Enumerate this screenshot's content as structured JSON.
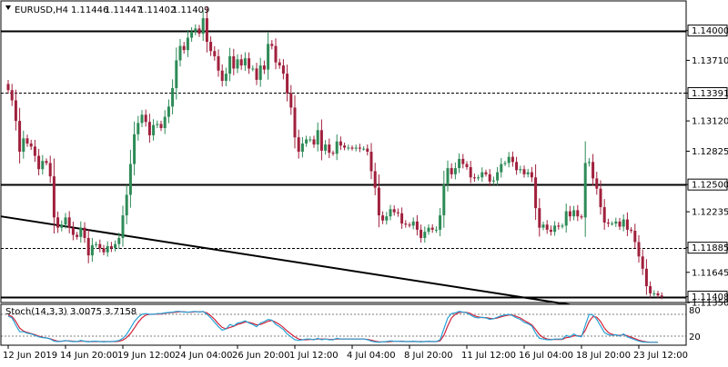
{
  "header": {
    "symbol": "EURUSD,H4",
    "open": "1.11446",
    "high": "1.11447",
    "low": "1.11402",
    "close": "1.11409"
  },
  "indicator": {
    "label": "Stoch(14,3,3) 3.0075 3.7158",
    "levels": [
      "80",
      "20"
    ]
  },
  "colors": {
    "bull": "#2e8b57",
    "bear": "#a0203c",
    "stoch_main": "#29a3d6",
    "stoch_signal": "#d1233a",
    "level_line": "#000000"
  },
  "chart_data": [
    {
      "type": "candlestick",
      "title": "EURUSD,H4",
      "ylim": [
        1.1136,
        1.1428
      ],
      "x_tick_labels": [
        "12 Jun 2019",
        "14 Jun 20:00",
        "19 Jun 12:00",
        "24 Jun 04:00",
        "26 Jun 20:00",
        "1 Jul 12:00",
        "4 Jul 04:00",
        "8 Jul 20:00",
        "11 Jul 12:00",
        "16 Jul 04:00",
        "18 Jul 20:00",
        "23 Jul 12:00"
      ],
      "y_tick_labels": [
        "1.14000",
        "1.13710",
        "1.13391",
        "1.13120",
        "1.12825",
        "1.12500",
        "1.12235",
        "1.11885",
        "1.11645",
        "1.11408",
        "1.11350"
      ],
      "horizontal_levels": [
        {
          "value": 1.14,
          "style": "solid"
        },
        {
          "value": 1.13391,
          "style": "dashed"
        },
        {
          "value": 1.125,
          "style": "solid"
        },
        {
          "value": 1.11885,
          "style": "dashed"
        },
        {
          "value": 1.11408,
          "style": "solid"
        }
      ],
      "trendline": {
        "start": [
          0,
          1.1219
        ],
        "end": [
          147,
          1.1133
        ]
      },
      "grid": false,
      "close": [
        1.1342,
        1.1332,
        1.1312,
        1.1282,
        1.1295,
        1.129,
        1.1287,
        1.1278,
        1.1265,
        1.1273,
        1.1271,
        1.1258,
        1.1218,
        1.1208,
        1.1211,
        1.1218,
        1.1208,
        1.1201,
        1.1199,
        1.1208,
        1.1198,
        1.1181,
        1.1191,
        1.1192,
        1.1188,
        1.1184,
        1.119,
        1.1188,
        1.1192,
        1.1198,
        1.122,
        1.124,
        1.127,
        1.1299,
        1.131,
        1.1318,
        1.1311,
        1.1298,
        1.1308,
        1.1309,
        1.1305,
        1.1316,
        1.1326,
        1.1344,
        1.1371,
        1.1385,
        1.1381,
        1.1393,
        1.1399,
        1.1402,
        1.1397,
        1.1412,
        1.1389,
        1.138,
        1.1375,
        1.1361,
        1.1351,
        1.1358,
        1.1375,
        1.1363,
        1.1372,
        1.1366,
        1.1373,
        1.1363,
        1.1363,
        1.1352,
        1.1366,
        1.1362,
        1.1387,
        1.1385,
        1.1369,
        1.1366,
        1.1358,
        1.1339,
        1.1325,
        1.1296,
        1.1282,
        1.129,
        1.1294,
        1.1294,
        1.1289,
        1.1303,
        1.1283,
        1.1289,
        1.1281,
        1.128,
        1.1292,
        1.1288,
        1.1286,
        1.1286,
        1.1285,
        1.1286,
        1.1285,
        1.1285,
        1.1282,
        1.1263,
        1.1247,
        1.122,
        1.1215,
        1.1219,
        1.1226,
        1.1223,
        1.1222,
        1.1212,
        1.1211,
        1.121,
        1.1214,
        1.1206,
        1.1198,
        1.1204,
        1.1208,
        1.1206,
        1.1206,
        1.122,
        1.125,
        1.1266,
        1.126,
        1.1266,
        1.1275,
        1.127,
        1.1267,
        1.1257,
        1.1256,
        1.1257,
        1.1262,
        1.126,
        1.1253,
        1.1254,
        1.1262,
        1.127,
        1.1271,
        1.1277,
        1.1272,
        1.1264,
        1.1265,
        1.126,
        1.1262,
        1.1257,
        1.1227,
        1.1208,
        1.1211,
        1.1206,
        1.1204,
        1.121,
        1.1209,
        1.121,
        1.1224,
        1.1219,
        1.1225,
        1.1219,
        1.1218,
        1.1271,
        1.1272,
        1.1256,
        1.1246,
        1.1228,
        1.1213,
        1.1212,
        1.1212,
        1.1214,
        1.1209,
        1.1216,
        1.1206,
        1.1205,
        1.1194,
        1.118,
        1.1168,
        1.1151,
        1.1144,
        1.1144,
        1.1142,
        1.1141
      ],
      "stochastic": {
        "main": [
          75,
          70,
          50,
          32,
          32,
          28,
          26,
          22,
          18,
          16,
          15,
          12,
          6,
          5,
          6,
          8,
          6,
          5,
          5,
          8,
          6,
          4,
          6,
          6,
          5,
          4,
          5,
          5,
          6,
          8,
          14,
          25,
          42,
          60,
          72,
          80,
          82,
          80,
          80,
          82,
          82,
          84,
          85,
          86,
          88,
          88,
          86,
          86,
          87,
          88,
          86,
          88,
          80,
          70,
          58,
          46,
          36,
          40,
          52,
          48,
          56,
          58,
          62,
          56,
          52,
          46,
          56,
          60,
          66,
          64,
          52,
          46,
          38,
          26,
          18,
          10,
          8,
          10,
          12,
          12,
          10,
          14,
          10,
          12,
          10,
          10,
          14,
          12,
          12,
          12,
          12,
          12,
          12,
          12,
          10,
          6,
          4,
          3,
          4,
          5,
          7,
          6,
          6,
          5,
          5,
          5,
          6,
          5,
          4,
          5,
          6,
          5,
          5,
          10,
          40,
          70,
          82,
          84,
          88,
          86,
          84,
          78,
          72,
          70,
          72,
          70,
          66,
          68,
          72,
          76,
          78,
          80,
          76,
          70,
          66,
          58,
          54,
          48,
          28,
          14,
          12,
          10,
          10,
          12,
          12,
          12,
          22,
          18,
          26,
          20,
          18,
          50,
          80,
          78,
          66,
          48,
          30,
          24,
          22,
          24,
          20,
          26,
          18,
          14,
          10,
          6,
          4,
          3,
          3,
          3,
          3
        ],
        "signal": [
          78,
          74,
          60,
          42,
          34,
          30,
          27,
          24,
          20,
          17,
          15,
          13,
          9,
          6,
          6,
          7,
          7,
          6,
          5,
          6,
          6,
          5,
          5,
          5,
          5,
          5,
          5,
          5,
          5,
          6,
          9,
          16,
          27,
          42,
          58,
          70,
          78,
          80,
          80,
          81,
          81,
          83,
          84,
          85,
          86,
          87,
          87,
          86,
          86,
          87,
          87,
          87,
          84,
          76,
          66,
          54,
          44,
          40,
          44,
          47,
          52,
          55,
          59,
          58,
          55,
          51,
          52,
          56,
          61,
          63,
          58,
          52,
          44,
          34,
          26,
          18,
          12,
          10,
          10,
          11,
          11,
          12,
          12,
          12,
          11,
          11,
          12,
          12,
          12,
          12,
          12,
          12,
          12,
          12,
          11,
          9,
          6,
          4,
          4,
          4,
          5,
          6,
          6,
          6,
          5,
          5,
          5,
          5,
          5,
          5,
          5,
          5,
          5,
          7,
          22,
          48,
          70,
          80,
          85,
          86,
          85,
          82,
          76,
          73,
          71,
          71,
          69,
          68,
          70,
          73,
          76,
          78,
          78,
          74,
          70,
          63,
          57,
          51,
          38,
          24,
          16,
          12,
          11,
          11,
          11,
          11,
          16,
          17,
          21,
          21,
          20,
          36,
          60,
          74,
          72,
          60,
          42,
          30,
          25,
          23,
          22,
          24,
          21,
          17,
          13,
          9,
          6,
          4,
          3,
          3,
          3
        ]
      }
    }
  ]
}
